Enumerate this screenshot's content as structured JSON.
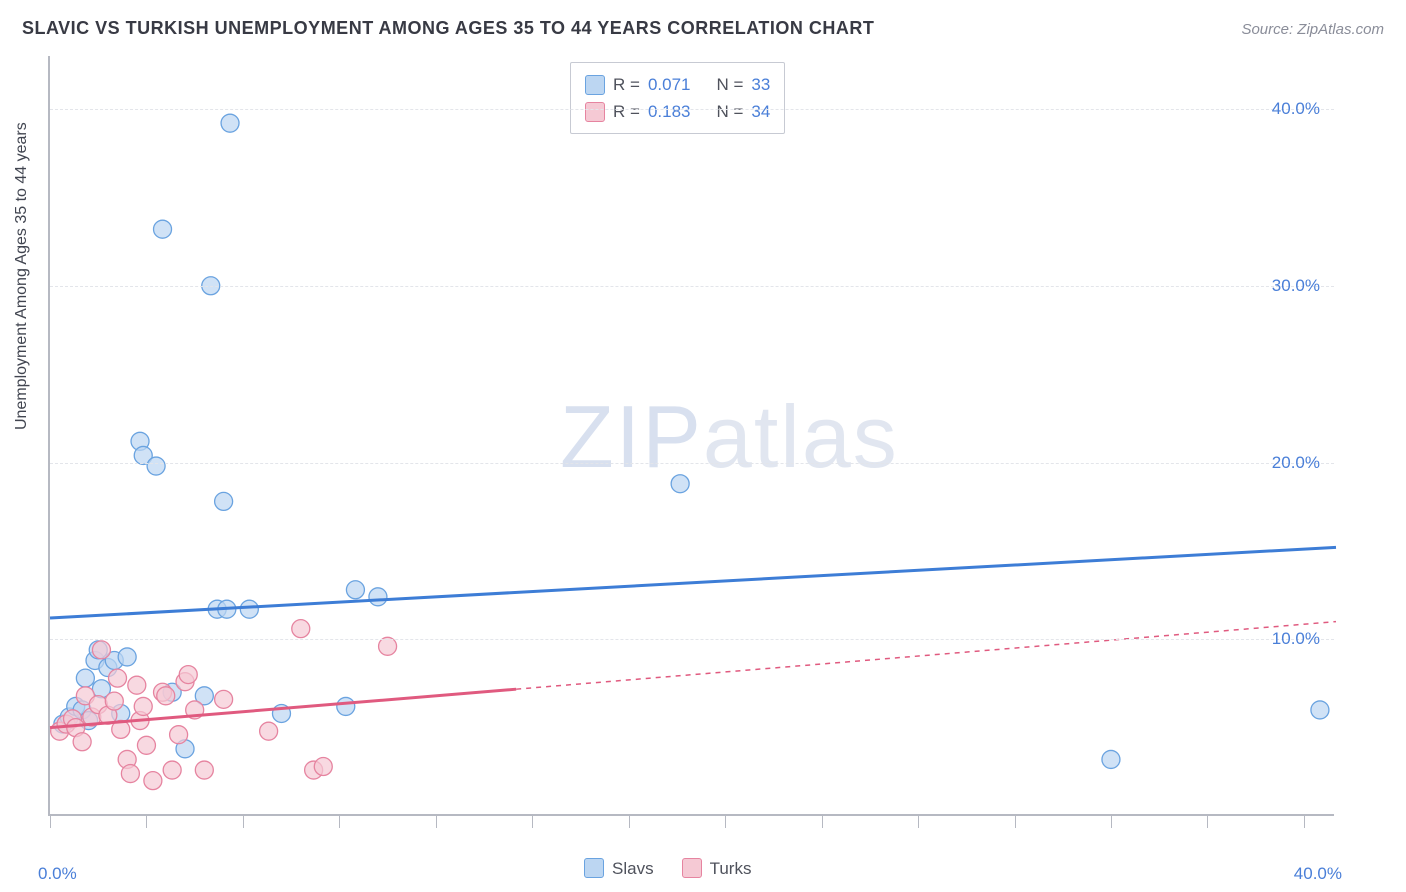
{
  "title": "SLAVIC VS TURKISH UNEMPLOYMENT AMONG AGES 35 TO 44 YEARS CORRELATION CHART",
  "source_label": "Source: ZipAtlas.com",
  "y_axis_label": "Unemployment Among Ages 35 to 44 years",
  "watermark_bold": "ZIP",
  "watermark_thin": "atlas",
  "chart": {
    "type": "scatter",
    "xlim": [
      0,
      40
    ],
    "ylim": [
      0,
      43
    ],
    "x_tick_positions": [
      0,
      3,
      6,
      9,
      12,
      15,
      18,
      21,
      24,
      27,
      30,
      33,
      36,
      39
    ],
    "x_tick_labels_shown": {
      "left": "0.0%",
      "right": "40.0%"
    },
    "y_gridlines": [
      10,
      20,
      30,
      40
    ],
    "y_tick_labels": [
      "10.0%",
      "20.0%",
      "30.0%",
      "40.0%"
    ],
    "grid_color": "#e3e5ea",
    "axis_color": "#b6b9c2",
    "background_color": "#ffffff",
    "marker_radius": 9,
    "marker_stroke_width": 1.3,
    "line_width": 3,
    "series": [
      {
        "name": "Slavs",
        "color_fill": "#bcd6f2",
        "color_stroke": "#6aa3e0",
        "line_color": "#3d7dd6",
        "line_dash": "none",
        "trend": {
          "x1": 0,
          "y1": 11.2,
          "x2": 40,
          "y2": 15.2
        },
        "points": [
          [
            0.4,
            5.2
          ],
          [
            0.6,
            5.6
          ],
          [
            0.8,
            6.2
          ],
          [
            1.0,
            6.0
          ],
          [
            1.1,
            7.8
          ],
          [
            1.2,
            5.4
          ],
          [
            1.4,
            8.8
          ],
          [
            1.5,
            9.4
          ],
          [
            1.6,
            7.2
          ],
          [
            1.8,
            8.4
          ],
          [
            2.0,
            8.8
          ],
          [
            2.2,
            5.8
          ],
          [
            2.4,
            9.0
          ],
          [
            2.8,
            21.2
          ],
          [
            2.9,
            20.4
          ],
          [
            3.3,
            19.8
          ],
          [
            3.5,
            33.2
          ],
          [
            3.8,
            7.0
          ],
          [
            4.2,
            3.8
          ],
          [
            4.8,
            6.8
          ],
          [
            5.0,
            30.0
          ],
          [
            5.2,
            11.7
          ],
          [
            5.4,
            17.8
          ],
          [
            5.5,
            11.7
          ],
          [
            5.6,
            39.2
          ],
          [
            6.2,
            11.7
          ],
          [
            7.2,
            5.8
          ],
          [
            9.2,
            6.2
          ],
          [
            9.5,
            12.8
          ],
          [
            10.2,
            12.4
          ],
          [
            19.6,
            18.8
          ],
          [
            33.0,
            3.2
          ],
          [
            39.5,
            6.0
          ]
        ]
      },
      {
        "name": "Turks",
        "color_fill": "#f5c9d4",
        "color_stroke": "#e684a0",
        "line_color": "#e05a7f",
        "line_dash_solid_until_x": 14.5,
        "line_dash": "5,5",
        "trend": {
          "x1": 0,
          "y1": 5.0,
          "x2": 40,
          "y2": 11.0
        },
        "points": [
          [
            0.3,
            4.8
          ],
          [
            0.5,
            5.2
          ],
          [
            0.7,
            5.5
          ],
          [
            0.8,
            5.0
          ],
          [
            1.0,
            4.2
          ],
          [
            1.1,
            6.8
          ],
          [
            1.3,
            5.6
          ],
          [
            1.5,
            6.3
          ],
          [
            1.6,
            9.4
          ],
          [
            1.8,
            5.7
          ],
          [
            2.0,
            6.5
          ],
          [
            2.1,
            7.8
          ],
          [
            2.2,
            4.9
          ],
          [
            2.4,
            3.2
          ],
          [
            2.5,
            2.4
          ],
          [
            2.7,
            7.4
          ],
          [
            2.8,
            5.4
          ],
          [
            2.9,
            6.2
          ],
          [
            3.0,
            4.0
          ],
          [
            3.2,
            2.0
          ],
          [
            3.5,
            7.0
          ],
          [
            3.6,
            6.8
          ],
          [
            3.8,
            2.6
          ],
          [
            4.0,
            4.6
          ],
          [
            4.2,
            7.6
          ],
          [
            4.3,
            8.0
          ],
          [
            4.5,
            6.0
          ],
          [
            4.8,
            2.6
          ],
          [
            5.4,
            6.6
          ],
          [
            6.8,
            4.8
          ],
          [
            7.8,
            10.6
          ],
          [
            8.2,
            2.6
          ],
          [
            8.5,
            2.8
          ],
          [
            10.5,
            9.6
          ]
        ]
      }
    ]
  },
  "stat_legend": {
    "rows": [
      {
        "swatch_fill": "#bcd6f2",
        "swatch_stroke": "#6aa3e0",
        "r_label": "R =",
        "r_value": "0.071",
        "n_label": "N =",
        "n_value": "33"
      },
      {
        "swatch_fill": "#f5c9d4",
        "swatch_stroke": "#e684a0",
        "r_label": "R =",
        "r_value": "0.183",
        "n_label": "N =",
        "n_value": "34"
      }
    ]
  },
  "bottom_legend": {
    "items": [
      {
        "swatch_fill": "#bcd6f2",
        "swatch_stroke": "#6aa3e0",
        "label": "Slavs"
      },
      {
        "swatch_fill": "#f5c9d4",
        "swatch_stroke": "#e684a0",
        "label": "Turks"
      }
    ]
  }
}
